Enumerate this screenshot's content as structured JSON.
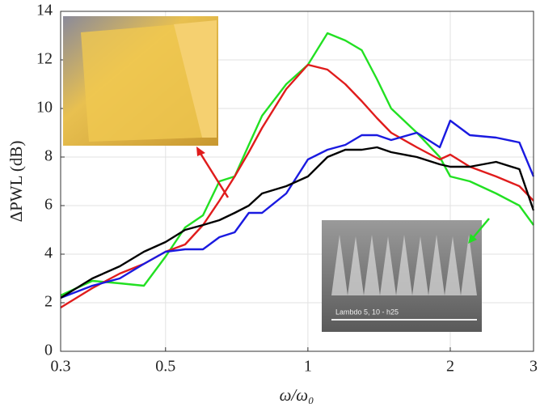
{
  "chart_data": {
    "type": "line",
    "x_label": "ω/ω₀",
    "y_label": "ΔPWL (dB)",
    "inset_label": "Lambdo 5, 10 - h25",
    "x": [
      0.3,
      0.35,
      0.4,
      0.45,
      0.5,
      0.55,
      0.6,
      0.65,
      0.7,
      0.75,
      0.8,
      0.9,
      1.0,
      1.1,
      1.2,
      1.3,
      1.4,
      1.5,
      1.7,
      1.9,
      2.0,
      2.2,
      2.5,
      2.8,
      3.0
    ],
    "series": [
      {
        "color": "#22e022",
        "values": [
          2.3,
          2.9,
          2.8,
          2.7,
          3.9,
          5.1,
          5.6,
          7.0,
          7.2,
          8.5,
          9.7,
          11.0,
          11.8,
          13.1,
          12.8,
          12.4,
          11.2,
          10.0,
          9.0,
          8.0,
          7.2,
          7.0,
          6.5,
          6.0,
          5.2
        ]
      },
      {
        "color": "#e01c1c",
        "values": [
          1.8,
          2.6,
          3.2,
          3.6,
          4.1,
          4.4,
          5.2,
          6.2,
          7.2,
          8.2,
          9.2,
          10.8,
          11.8,
          11.6,
          11.0,
          10.3,
          9.6,
          9.0,
          8.4,
          7.9,
          8.1,
          7.6,
          7.2,
          6.8,
          6.2
        ]
      },
      {
        "color": "#1a1ae0",
        "values": [
          2.2,
          2.7,
          3.0,
          3.6,
          4.1,
          4.2,
          4.2,
          4.7,
          4.9,
          5.7,
          5.7,
          6.5,
          7.9,
          8.3,
          8.5,
          8.9,
          8.9,
          8.7,
          9.0,
          8.4,
          9.5,
          8.9,
          8.8,
          8.6,
          7.2
        ]
      },
      {
        "color": "#000000",
        "values": [
          2.2,
          3.0,
          3.5,
          4.1,
          4.5,
          5.0,
          5.2,
          5.4,
          5.7,
          6.0,
          6.5,
          6.8,
          7.2,
          8.0,
          8.3,
          8.3,
          8.4,
          8.2,
          8.0,
          7.7,
          7.6,
          7.6,
          7.8,
          7.5,
          5.8
        ]
      }
    ],
    "xlim": [
      0.3,
      3
    ],
    "xticks": [
      0.3,
      0.5,
      1,
      2,
      3
    ],
    "log_x": true,
    "ylim": [
      0,
      14
    ],
    "yticks": [
      0,
      2,
      4,
      6,
      8,
      10,
      12,
      14
    ],
    "grid": true
  }
}
